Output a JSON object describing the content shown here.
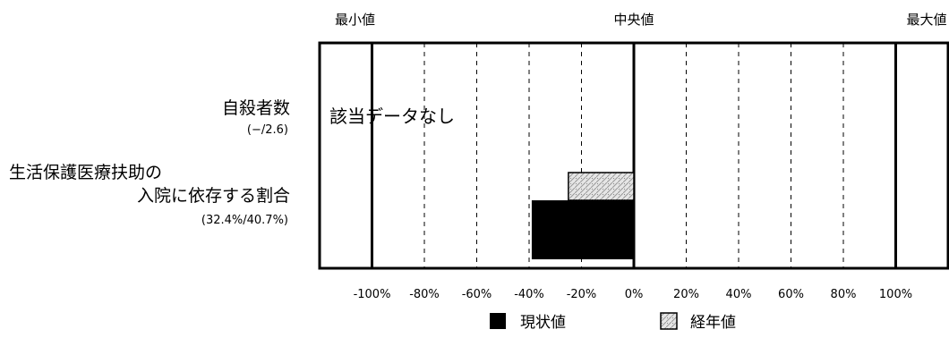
{
  "chart_data": {
    "type": "bar",
    "orientation": "horizontal",
    "top_labels": {
      "min": "最小値",
      "median": "中央値",
      "max": "最大値"
    },
    "xlim": [
      -120,
      120
    ],
    "x_ticks": [
      "-100%",
      "-80%",
      "-60%",
      "-40%",
      "-20%",
      "0%",
      "20%",
      "40%",
      "60%",
      "80%",
      "100%"
    ],
    "x_tick_values": [
      -100,
      -80,
      -60,
      -40,
      -20,
      0,
      20,
      40,
      60,
      80,
      100
    ],
    "grid": true,
    "categories": [
      {
        "name": "自殺者数",
        "sub": "(−/2.6)",
        "no_data_text": "該当データなし",
        "current": null,
        "trend": null
      },
      {
        "name_line1": "生活保護医療扶助の",
        "name_line2": "入院に依存する割合",
        "sub": "(32.4%/40.7%)",
        "current": -39,
        "trend": -25
      }
    ],
    "legend": {
      "position": "bottom",
      "items": [
        {
          "label": "現状値",
          "style": "solid",
          "color": "#000000"
        },
        {
          "label": "経年値",
          "style": "hatched",
          "color": "#cfcfcf"
        }
      ]
    }
  }
}
